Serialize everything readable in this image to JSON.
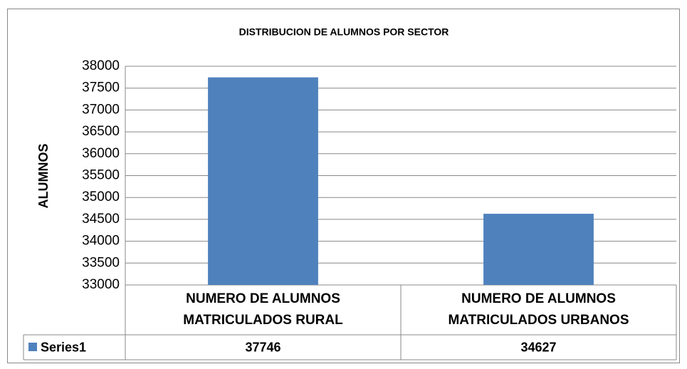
{
  "chart_data": {
    "type": "bar",
    "title": "DISTRIBUCION DE ALUMNOS POR SECTOR",
    "y_label": "ALUMNOS",
    "categories": [
      "NUMERO DE ALUMNOS MATRICULADOS RURAL",
      "NUMERO DE ALUMNOS MATRICULADOS URBANOS"
    ],
    "series": [
      {
        "name": "Series1",
        "color": "#4f81bd",
        "values": [
          37746,
          34627
        ]
      }
    ],
    "ylim": [
      33000,
      38000
    ],
    "yticks": [
      33000,
      33500,
      34000,
      34500,
      35000,
      35500,
      36000,
      36500,
      37000,
      37500,
      38000
    ],
    "grid": true,
    "legend": "data-table"
  }
}
